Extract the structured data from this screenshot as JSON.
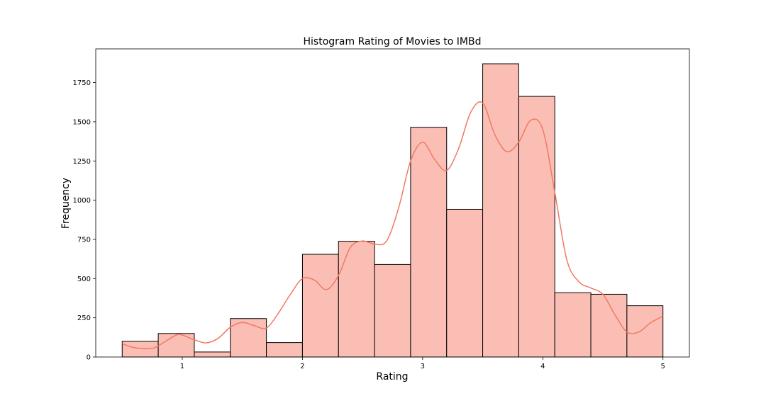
{
  "chart_data": {
    "type": "bar",
    "title": "Histogram Rating of Movies to IMBd",
    "xlabel": "Rating",
    "ylabel": "Frequency",
    "xlim": [
      0.28,
      5.22
    ],
    "ylim": [
      0,
      1965
    ],
    "xticks": [
      1,
      2,
      3,
      4,
      5
    ],
    "yticks": [
      0,
      250,
      500,
      750,
      1000,
      1250,
      1500,
      1750
    ],
    "bin_edges": [
      0.5,
      0.8,
      1.1,
      1.4,
      1.7,
      2.0,
      2.3,
      2.6,
      2.9,
      3.2,
      3.5,
      3.8,
      4.1,
      4.4,
      4.7,
      5.0
    ],
    "values": [
      100,
      150,
      32,
      245,
      92,
      655,
      738,
      590,
      1465,
      942,
      1870,
      1662,
      410,
      400,
      327
    ],
    "kde": {
      "x": [
        0.5,
        0.6,
        0.75,
        0.85,
        0.95,
        1.0,
        1.1,
        1.2,
        1.3,
        1.4,
        1.5,
        1.6,
        1.7,
        1.8,
        1.9,
        2.0,
        2.1,
        2.2,
        2.3,
        2.4,
        2.5,
        2.6,
        2.7,
        2.8,
        2.9,
        3.0,
        3.1,
        3.2,
        3.3,
        3.4,
        3.5,
        3.6,
        3.7,
        3.8,
        3.9,
        4.0,
        4.1,
        4.2,
        4.3,
        4.4,
        4.5,
        4.6,
        4.7,
        4.8,
        4.9,
        5.0
      ],
      "y": [
        85,
        60,
        55,
        95,
        140,
        140,
        110,
        90,
        120,
        190,
        220,
        200,
        185,
        280,
        400,
        500,
        490,
        430,
        520,
        700,
        740,
        720,
        740,
        950,
        1250,
        1370,
        1260,
        1190,
        1330,
        1560,
        1620,
        1420,
        1310,
        1370,
        1510,
        1450,
        1050,
        620,
        480,
        440,
        400,
        270,
        160,
        160,
        220,
        260
      ]
    },
    "bar_color": "#fbbeb5",
    "line_color": "#f17a63",
    "grid": false,
    "legend": "none"
  }
}
